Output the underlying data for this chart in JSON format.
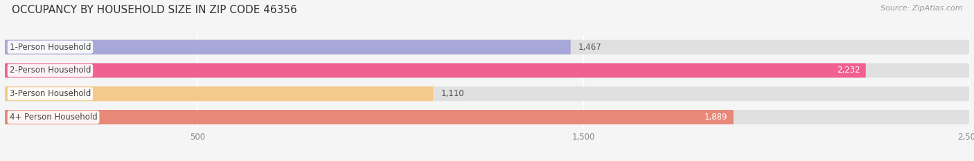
{
  "title": "OCCUPANCY BY HOUSEHOLD SIZE IN ZIP CODE 46356",
  "source": "Source: ZipAtlas.com",
  "categories": [
    "1-Person Household",
    "2-Person Household",
    "3-Person Household",
    "4+ Person Household"
  ],
  "values": [
    1467,
    2232,
    1110,
    1889
  ],
  "bar_colors": [
    "#a8a8d8",
    "#f06090",
    "#f5c98a",
    "#e88878"
  ],
  "bar_bg_color": "#e0e0e0",
  "value_labels": [
    "1,467",
    "2,232",
    "1,110",
    "1,889"
  ],
  "xlim": [
    0,
    2500
  ],
  "xticks": [
    500,
    1500,
    2500
  ],
  "xtick_labels": [
    "500",
    "1,500",
    "2,500"
  ],
  "background_color": "#f5f5f5",
  "title_fontsize": 11,
  "label_fontsize": 8.5,
  "value_fontsize": 8.5,
  "source_fontsize": 8
}
